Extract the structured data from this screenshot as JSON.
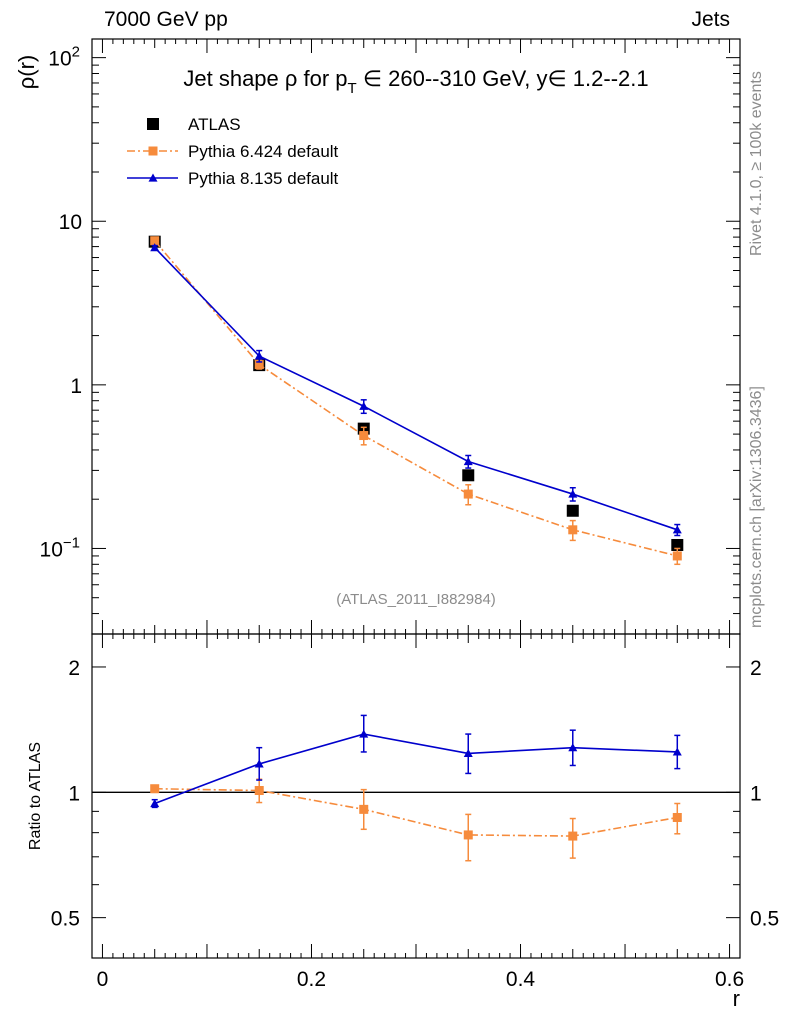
{
  "header": {
    "left": "7000 GeV pp",
    "right": "Jets"
  },
  "side_labels": {
    "rivet": "Rivet 4.1.0, ≥ 100k events",
    "mcplots": "mcplots.cern.ch [arXiv:1306.3436]"
  },
  "chart_data": [
    {
      "type": "scatter",
      "panel": "main",
      "title": "Jet shape ρ for p_T ∈ 260--310 GeV, y∈ 1.2--2.1",
      "title_parts": {
        "pre": "Jet shape ρ for p",
        "sub": "T",
        "post": " ∈ 260--310 GeV, y∈ 1.2--2.1"
      },
      "ylabel": "ρ(r)",
      "yscale": "log",
      "ylim": [
        0.03,
        130
      ],
      "xlim": [
        -0.01,
        0.61
      ],
      "analysis_label": "(ATLAS_2011_I882984)",
      "legend_position": "top-left",
      "yticks": [
        {
          "value": 10,
          "label": "10"
        },
        {
          "value": 1,
          "label": "1"
        }
      ],
      "yticks_pow": [
        {
          "value": 100,
          "base": "10",
          "exp": "2"
        },
        {
          "value": 0.1,
          "base": "10",
          "exp": "−1"
        }
      ],
      "series": [
        {
          "name": "ATLAS",
          "color": "#000000",
          "marker": "square",
          "x": [
            0.05,
            0.15,
            0.25,
            0.35,
            0.45,
            0.55
          ],
          "y": [
            7.5,
            1.32,
            0.54,
            0.28,
            0.17,
            0.105
          ]
        },
        {
          "name": "Pythia 6.424 default",
          "color": "#f68b3c",
          "marker": "square",
          "line": "dashdot",
          "x": [
            0.05,
            0.15,
            0.25,
            0.35,
            0.45,
            0.55
          ],
          "y": [
            7.6,
            1.33,
            0.49,
            0.215,
            0.13,
            0.09
          ],
          "yerr": [
            0.3,
            0.08,
            0.06,
            0.03,
            0.018,
            0.01
          ]
        },
        {
          "name": "Pythia 8.135 default",
          "color": "#0000cc",
          "marker": "triangle",
          "line": "solid",
          "x": [
            0.05,
            0.15,
            0.25,
            0.35,
            0.45,
            0.55
          ],
          "y": [
            6.9,
            1.5,
            0.74,
            0.34,
            0.215,
            0.13
          ],
          "yerr": [
            0.2,
            0.12,
            0.07,
            0.03,
            0.02,
            0.01
          ]
        }
      ]
    },
    {
      "type": "scatter",
      "panel": "ratio",
      "ylabel": "Ratio to ATLAS",
      "xlabel": "r",
      "yscale": "log",
      "ylim": [
        0.4,
        2.4
      ],
      "xlim": [
        -0.01,
        0.61
      ],
      "reference_line": 1,
      "yticks": [
        {
          "value": 2,
          "label": "2"
        },
        {
          "value": 1,
          "label": "1"
        },
        {
          "value": 0.5,
          "label": "0.5"
        }
      ],
      "xticks": [
        {
          "value": 0,
          "label": "0"
        },
        {
          "value": 0.2,
          "label": "0.2"
        },
        {
          "value": 0.4,
          "label": "0.4"
        },
        {
          "value": 0.6,
          "label": "0.6"
        }
      ],
      "series": [
        {
          "name": "Pythia 6.424 default",
          "color": "#f68b3c",
          "marker": "square",
          "line": "dashdot",
          "x": [
            0.05,
            0.15,
            0.25,
            0.35,
            0.45,
            0.55
          ],
          "y": [
            1.02,
            1.01,
            0.91,
            0.79,
            0.785,
            0.87
          ],
          "ylo": [
            1.0,
            0.945,
            0.815,
            0.685,
            0.695,
            0.795
          ],
          "yhi": [
            1.04,
            1.075,
            1.015,
            0.885,
            0.865,
            0.94
          ]
        },
        {
          "name": "Pythia 8.135 default",
          "color": "#0000cc",
          "marker": "triangle",
          "line": "solid",
          "x": [
            0.05,
            0.15,
            0.25,
            0.35,
            0.45,
            0.55
          ],
          "y": [
            0.94,
            1.17,
            1.38,
            1.24,
            1.28,
            1.25
          ],
          "ylo": [
            0.92,
            1.07,
            1.25,
            1.11,
            1.16,
            1.14
          ],
          "yhi": [
            0.96,
            1.28,
            1.53,
            1.38,
            1.41,
            1.37
          ]
        }
      ]
    }
  ]
}
